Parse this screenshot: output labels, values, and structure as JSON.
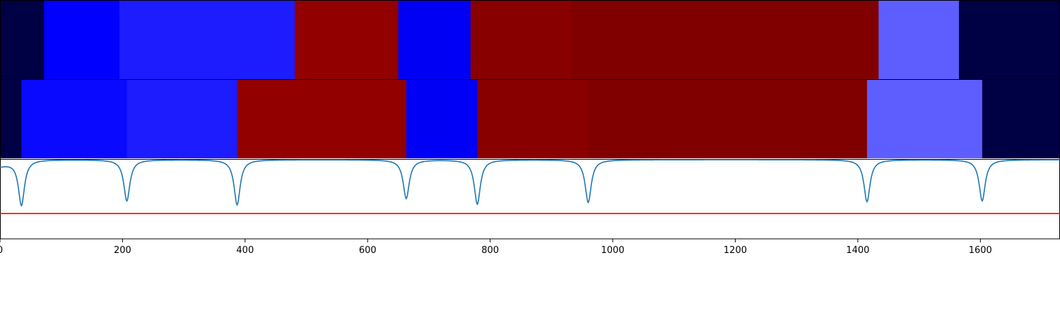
{
  "chart_data": {
    "type": "heatmap",
    "x_range": [
      0,
      1730
    ],
    "x_ticks": [
      {
        "value": 0,
        "label": "0"
      },
      {
        "value": 200,
        "label": "200"
      },
      {
        "value": 400,
        "label": "400"
      },
      {
        "value": 600,
        "label": "600"
      },
      {
        "value": 800,
        "label": "800"
      },
      {
        "value": 1000,
        "label": "1000"
      },
      {
        "value": 1200,
        "label": "1200"
      },
      {
        "value": 1400,
        "label": "1400"
      },
      {
        "value": 1600,
        "label": "1600"
      }
    ],
    "rows": [
      {
        "segments": [
          {
            "start": 0,
            "end": 72,
            "color": "#000044"
          },
          {
            "start": 72,
            "end": 195,
            "color": "#0000ff"
          },
          {
            "start": 195,
            "end": 481,
            "color": "#1c1cff"
          },
          {
            "start": 481,
            "end": 650,
            "color": "#920000"
          },
          {
            "start": 650,
            "end": 768,
            "color": "#0000f4"
          },
          {
            "start": 768,
            "end": 932,
            "color": "#880000"
          },
          {
            "start": 932,
            "end": 1434,
            "color": "#800000"
          },
          {
            "start": 1434,
            "end": 1565,
            "color": "#5e5eff"
          },
          {
            "start": 1565,
            "end": 1730,
            "color": "#000044"
          }
        ]
      },
      {
        "segments": [
          {
            "start": 0,
            "end": 35,
            "color": "#000044"
          },
          {
            "start": 35,
            "end": 207,
            "color": "#0909ff"
          },
          {
            "start": 207,
            "end": 387,
            "color": "#1c1cff"
          },
          {
            "start": 387,
            "end": 663,
            "color": "#920000"
          },
          {
            "start": 663,
            "end": 779,
            "color": "#0000f4"
          },
          {
            "start": 779,
            "end": 960,
            "color": "#880000"
          },
          {
            "start": 960,
            "end": 1415,
            "color": "#800000"
          },
          {
            "start": 1415,
            "end": 1603,
            "color": "#5e5eff"
          },
          {
            "start": 1603,
            "end": 1730,
            "color": "#000044"
          }
        ]
      }
    ],
    "line_panel": {
      "y_range": [
        0,
        1
      ],
      "baseline": 1.0,
      "line_color": "#1f77b4",
      "threshold": 0.32,
      "threshold_color": "#ff0000",
      "dips": [
        {
          "x": 35,
          "depth": 0.42
        },
        {
          "x": 207,
          "depth": 0.48
        },
        {
          "x": 387,
          "depth": 0.43
        },
        {
          "x": 663,
          "depth": 0.51
        },
        {
          "x": 779,
          "depth": 0.44
        },
        {
          "x": 960,
          "depth": 0.46
        },
        {
          "x": 1415,
          "depth": 0.47
        },
        {
          "x": 1603,
          "depth": 0.48
        }
      ]
    }
  }
}
